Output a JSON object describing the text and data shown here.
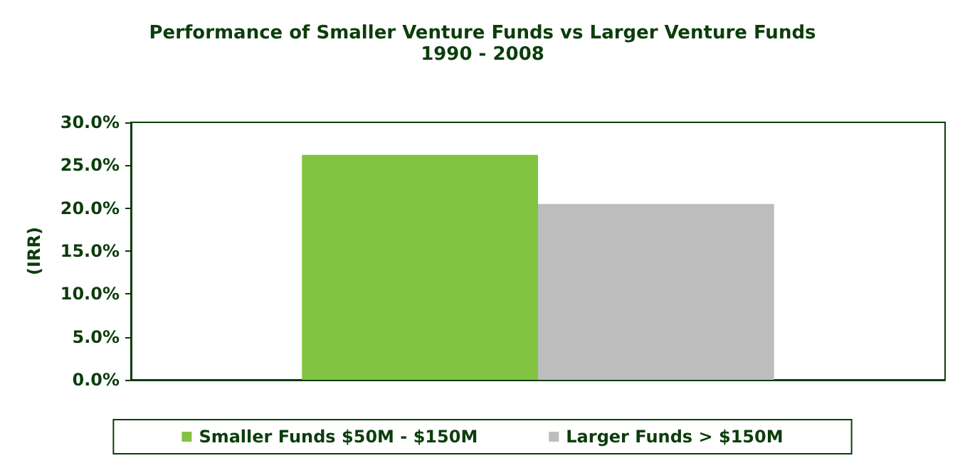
{
  "chart_data": {
    "type": "bar",
    "title": "Performance of Smaller Venture Funds vs Larger Venture Funds",
    "subtitle": "1990 - 2008",
    "ylabel": "(IRR)",
    "categories": [
      null
    ],
    "series": [
      {
        "name": "Smaller Funds $50M - $150M",
        "color": "#82c341",
        "values": [
          26.2
        ]
      },
      {
        "name": "Larger Funds > $150M",
        "color": "#bdbdbd",
        "values": [
          20.5
        ]
      }
    ],
    "ylim": [
      0,
      30
    ],
    "yticks": [
      {
        "value": 0,
        "label": "0.0%"
      },
      {
        "value": 5,
        "label": "5.0%"
      },
      {
        "value": 10,
        "label": "10.0%"
      },
      {
        "value": 15,
        "label": "15.0%"
      },
      {
        "value": 20,
        "label": "20.0%"
      },
      {
        "value": 25,
        "label": "25.0%"
      },
      {
        "value": 30,
        "label": "30.0%"
      }
    ],
    "grid": false,
    "legend": "bottom"
  }
}
